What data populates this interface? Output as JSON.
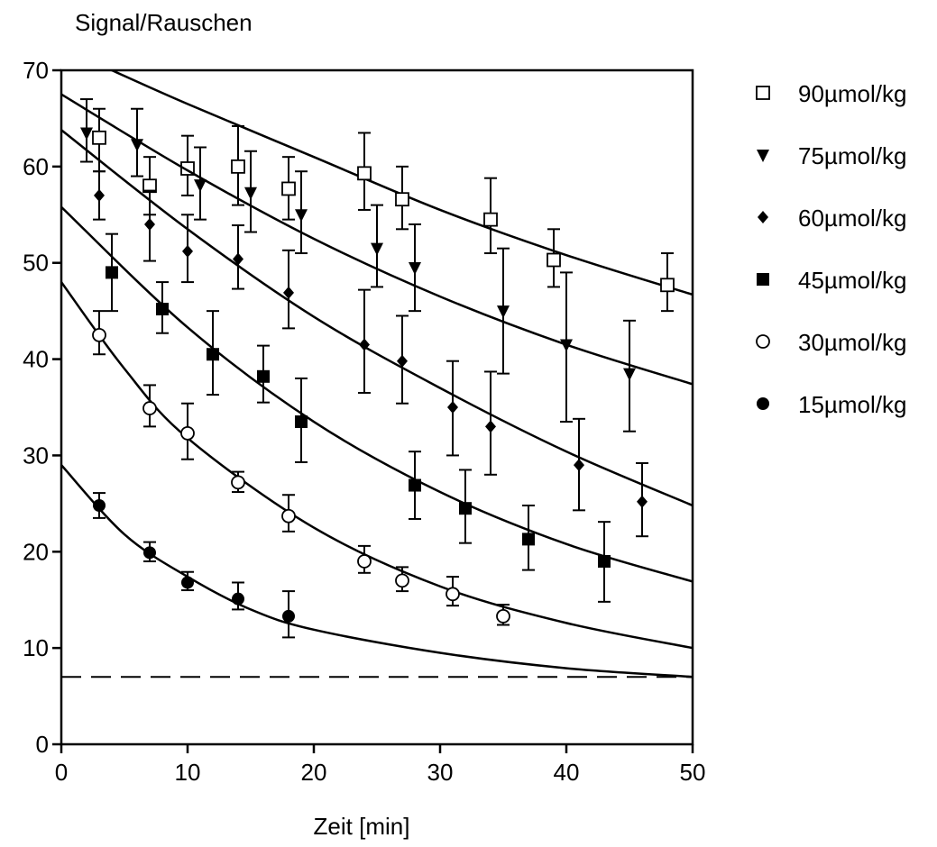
{
  "chart_data": {
    "type": "scatter",
    "ylabel": "Signal/Rauschen",
    "xlabel": "Zeit [min]",
    "xlim": [
      0,
      50
    ],
    "ylim": [
      0,
      70
    ],
    "xticks": [
      0,
      10,
      20,
      30,
      40,
      50
    ],
    "yticks": [
      0,
      10,
      20,
      30,
      40,
      50,
      60,
      70
    ],
    "grid": false,
    "legend_position": "right",
    "baseline": 7,
    "series": [
      {
        "name": "90µmol/kg",
        "marker": "open-square",
        "points": [
          {
            "x": 3,
            "y": 63,
            "lo": 59.5,
            "hi": 66
          },
          {
            "x": 7,
            "y": 58,
            "lo": 55,
            "hi": 61
          },
          {
            "x": 10,
            "y": 59.8,
            "lo": 57,
            "hi": 63.2
          },
          {
            "x": 14,
            "y": 60,
            "lo": 56,
            "hi": 64.2
          },
          {
            "x": 18,
            "y": 57.7,
            "lo": 54.5,
            "hi": 61
          },
          {
            "x": 24,
            "y": 59.3,
            "lo": 55.5,
            "hi": 63.5
          },
          {
            "x": 27,
            "y": 56.6,
            "lo": 53.5,
            "hi": 60
          },
          {
            "x": 34,
            "y": 54.5,
            "lo": 51,
            "hi": 58.8
          },
          {
            "x": 39,
            "y": 50.3,
            "lo": 47.5,
            "hi": 53.5
          },
          {
            "x": 48,
            "y": 47.7,
            "lo": 45,
            "hi": 51
          }
        ],
        "curve": [
          [
            4,
            70
          ],
          [
            10,
            66.5
          ],
          [
            20,
            61
          ],
          [
            30,
            55.5
          ],
          [
            40,
            50.8
          ],
          [
            50,
            46.7
          ]
        ]
      },
      {
        "name": "75µmol/kg",
        "marker": "filled-triangle-down",
        "points": [
          {
            "x": 2,
            "y": 63.5,
            "lo": 60.5,
            "hi": 67
          },
          {
            "x": 6,
            "y": 62.3,
            "lo": 59,
            "hi": 66
          },
          {
            "x": 11,
            "y": 58.1,
            "lo": 54.5,
            "hi": 62
          },
          {
            "x": 15,
            "y": 57.3,
            "lo": 53.2,
            "hi": 61.6
          },
          {
            "x": 19,
            "y": 55,
            "lo": 51,
            "hi": 59.5
          },
          {
            "x": 25,
            "y": 51.5,
            "lo": 47.5,
            "hi": 56
          },
          {
            "x": 28,
            "y": 49.5,
            "lo": 45,
            "hi": 54
          },
          {
            "x": 35,
            "y": 45,
            "lo": 38.5,
            "hi": 51.5
          },
          {
            "x": 40,
            "y": 41.5,
            "lo": 33.5,
            "hi": 49
          },
          {
            "x": 45,
            "y": 38.5,
            "lo": 32.5,
            "hi": 44
          }
        ],
        "curve": [
          [
            0,
            67.5
          ],
          [
            10,
            59.6
          ],
          [
            20,
            52.5
          ],
          [
            30,
            46.5
          ],
          [
            40,
            41.5
          ],
          [
            50,
            37.4
          ]
        ]
      },
      {
        "name": "60µmol/kg",
        "marker": "filled-diamond",
        "points": [
          {
            "x": 3,
            "y": 57,
            "lo": 54.5,
            "hi": 59.5
          },
          {
            "x": 7,
            "y": 54,
            "lo": 50.2,
            "hi": 57.5
          },
          {
            "x": 10,
            "y": 51.2,
            "lo": 48,
            "hi": 55
          },
          {
            "x": 14,
            "y": 50.4,
            "lo": 47.3,
            "hi": 53.9
          },
          {
            "x": 18,
            "y": 46.9,
            "lo": 43.2,
            "hi": 51.3
          },
          {
            "x": 24,
            "y": 41.5,
            "lo": 36.5,
            "hi": 47.2
          },
          {
            "x": 27,
            "y": 39.8,
            "lo": 35.4,
            "hi": 44.5
          },
          {
            "x": 31,
            "y": 35,
            "lo": 30,
            "hi": 39.8
          },
          {
            "x": 34,
            "y": 33,
            "lo": 28,
            "hi": 38.7
          },
          {
            "x": 41,
            "y": 29,
            "lo": 24.3,
            "hi": 33.8
          },
          {
            "x": 46,
            "y": 25.2,
            "lo": 21.6,
            "hi": 29.2
          }
        ],
        "curve": [
          [
            0,
            63.8
          ],
          [
            10,
            53.5
          ],
          [
            20,
            44.4
          ],
          [
            30,
            37
          ],
          [
            40,
            30.4
          ],
          [
            50,
            24.8
          ]
        ]
      },
      {
        "name": "45µmol/kg",
        "marker": "filled-square",
        "points": [
          {
            "x": 4,
            "y": 49,
            "lo": 45,
            "hi": 53
          },
          {
            "x": 8,
            "y": 45.2,
            "lo": 42.7,
            "hi": 48
          },
          {
            "x": 12,
            "y": 40.5,
            "lo": 36.3,
            "hi": 45
          },
          {
            "x": 16,
            "y": 38.2,
            "lo": 35.5,
            "hi": 41.4
          },
          {
            "x": 19,
            "y": 33.5,
            "lo": 29.3,
            "hi": 38
          },
          {
            "x": 28,
            "y": 26.9,
            "lo": 23.4,
            "hi": 30.4
          },
          {
            "x": 32,
            "y": 24.5,
            "lo": 20.9,
            "hi": 28.5
          },
          {
            "x": 37,
            "y": 21.3,
            "lo": 18.1,
            "hi": 24.8
          },
          {
            "x": 43,
            "y": 19,
            "lo": 14.8,
            "hi": 23.1
          }
        ],
        "curve": [
          [
            0,
            55.8
          ],
          [
            10,
            43.3
          ],
          [
            20,
            33.5
          ],
          [
            30,
            26.2
          ],
          [
            40,
            20.8
          ],
          [
            50,
            16.9
          ]
        ]
      },
      {
        "name": "30µmol/kg",
        "marker": "open-circle",
        "points": [
          {
            "x": 3,
            "y": 42.5,
            "lo": 40.5,
            "hi": 45
          },
          {
            "x": 7,
            "y": 34.9,
            "lo": 33,
            "hi": 37.3
          },
          {
            "x": 10,
            "y": 32.3,
            "lo": 29.6,
            "hi": 35.4
          },
          {
            "x": 14,
            "y": 27.2,
            "lo": 26.2,
            "hi": 28.3
          },
          {
            "x": 18,
            "y": 23.7,
            "lo": 22.1,
            "hi": 25.9
          },
          {
            "x": 24,
            "y": 19,
            "lo": 17.8,
            "hi": 20.6
          },
          {
            "x": 27,
            "y": 17,
            "lo": 15.9,
            "hi": 18.4
          },
          {
            "x": 31,
            "y": 15.6,
            "lo": 14.4,
            "hi": 17.4
          },
          {
            "x": 35,
            "y": 13.3,
            "lo": 12.4,
            "hi": 14.5
          }
        ],
        "curve": [
          [
            0,
            48
          ],
          [
            5,
            39
          ],
          [
            10,
            31.8
          ],
          [
            20,
            22.5
          ],
          [
            30,
            16.4
          ],
          [
            40,
            12.6
          ],
          [
            50,
            10
          ]
        ]
      },
      {
        "name": "15µmol/kg",
        "marker": "filled-circle",
        "points": [
          {
            "x": 3,
            "y": 24.8,
            "lo": 23.5,
            "hi": 26.1
          },
          {
            "x": 7,
            "y": 19.9,
            "lo": 19,
            "hi": 21
          },
          {
            "x": 10,
            "y": 16.8,
            "lo": 16,
            "hi": 17.9
          },
          {
            "x": 14,
            "y": 15.1,
            "lo": 14,
            "hi": 16.8
          },
          {
            "x": 18,
            "y": 13.3,
            "lo": 11.1,
            "hi": 15.9
          }
        ],
        "curve": [
          [
            0,
            29
          ],
          [
            5,
            21.8
          ],
          [
            10,
            17.4
          ],
          [
            15,
            14
          ],
          [
            20,
            11.9
          ],
          [
            30,
            9.5
          ],
          [
            40,
            7.9
          ],
          [
            50,
            7
          ]
        ]
      }
    ]
  }
}
